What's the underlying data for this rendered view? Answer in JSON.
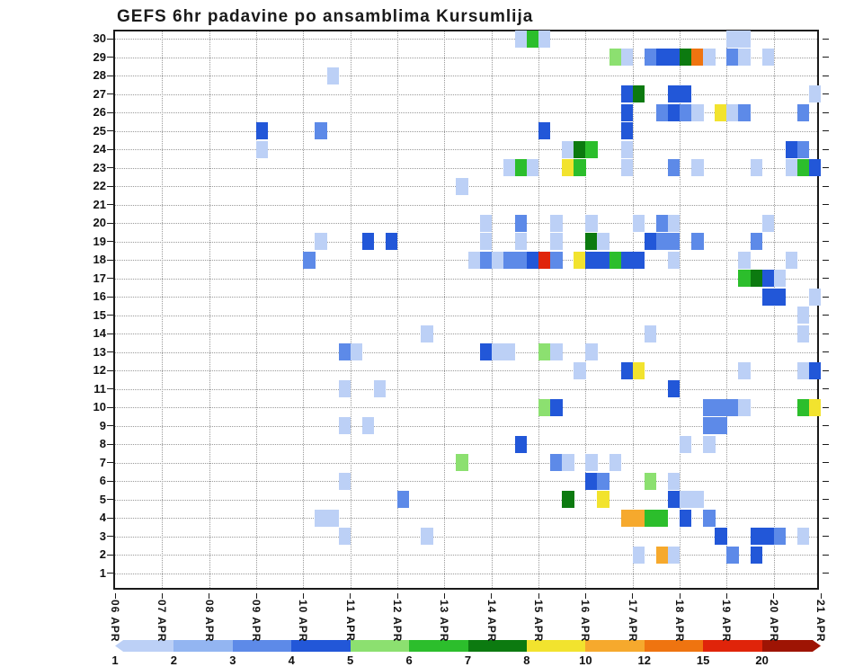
{
  "chart_data": {
    "type": "heatmap",
    "title": "GEFS 6hr padavine po ansamblima Kursumlija",
    "x_axis": {
      "tick_labels": [
        "06 APR",
        "07 APR",
        "08 APR",
        "09 APR",
        "10 APR",
        "11 APR",
        "12 APR",
        "13 APR",
        "14 APR",
        "15 APR",
        "16 APR",
        "17 APR",
        "18 APR",
        "19 APR",
        "20 APR",
        "21 APR"
      ],
      "slots_per_day": 4,
      "total_slots": 60
    },
    "y_axis": {
      "tick_labels": [
        "1",
        "2",
        "3",
        "4",
        "5",
        "6",
        "7",
        "8",
        "9",
        "10",
        "11",
        "12",
        "13",
        "14",
        "15",
        "16",
        "17",
        "18",
        "19",
        "20",
        "21",
        "22",
        "23",
        "24",
        "25",
        "26",
        "27",
        "28",
        "29",
        "30"
      ],
      "range": [
        1,
        30
      ]
    },
    "grid": "dotted",
    "legend": {
      "values": [
        "1",
        "2",
        "3",
        "4",
        "5",
        "6",
        "7",
        "8",
        "10",
        "12",
        "15",
        "20"
      ],
      "colors": [
        "#bcd0f6",
        "#93b5f1",
        "#5d8ae8",
        "#2257d8",
        "#8ce070",
        "#2cbe2c",
        "#0c7a10",
        "#f2e32e",
        "#f6a92d",
        "#ef7410",
        "#e0240a",
        "#9e1404"
      ]
    },
    "cells": [
      [
        30,
        34,
        0
      ],
      [
        30,
        35,
        5
      ],
      [
        30,
        36,
        0
      ],
      [
        30,
        52,
        0
      ],
      [
        30,
        53,
        0
      ],
      [
        29,
        42,
        4
      ],
      [
        29,
        43,
        0
      ],
      [
        29,
        45,
        2
      ],
      [
        29,
        46,
        3
      ],
      [
        29,
        47,
        3
      ],
      [
        29,
        48,
        6
      ],
      [
        29,
        49,
        9
      ],
      [
        29,
        50,
        0
      ],
      [
        29,
        52,
        2
      ],
      [
        29,
        53,
        0
      ],
      [
        29,
        55,
        0
      ],
      [
        28,
        18,
        0
      ],
      [
        27,
        43,
        3
      ],
      [
        27,
        44,
        6
      ],
      [
        27,
        47,
        3
      ],
      [
        27,
        48,
        3
      ],
      [
        27,
        59,
        0
      ],
      [
        26,
        43,
        3
      ],
      [
        26,
        46,
        2
      ],
      [
        26,
        47,
        3
      ],
      [
        26,
        48,
        2
      ],
      [
        26,
        49,
        0
      ],
      [
        26,
        51,
        7
      ],
      [
        26,
        52,
        0
      ],
      [
        26,
        53,
        2
      ],
      [
        26,
        58,
        2
      ],
      [
        25,
        12,
        3
      ],
      [
        25,
        17,
        2
      ],
      [
        25,
        36,
        3
      ],
      [
        25,
        43,
        3
      ],
      [
        24,
        12,
        0
      ],
      [
        24,
        38,
        0
      ],
      [
        24,
        39,
        6
      ],
      [
        24,
        40,
        5
      ],
      [
        24,
        43,
        0
      ],
      [
        24,
        57,
        3
      ],
      [
        24,
        58,
        2
      ],
      [
        23,
        33,
        0
      ],
      [
        23,
        34,
        5
      ],
      [
        23,
        35,
        0
      ],
      [
        23,
        38,
        7
      ],
      [
        23,
        39,
        5
      ],
      [
        23,
        43,
        0
      ],
      [
        23,
        47,
        2
      ],
      [
        23,
        49,
        0
      ],
      [
        23,
        54,
        0
      ],
      [
        23,
        57,
        0
      ],
      [
        23,
        58,
        5
      ],
      [
        23,
        59,
        3
      ],
      [
        22,
        29,
        0
      ],
      [
        20,
        31,
        0
      ],
      [
        20,
        34,
        2
      ],
      [
        20,
        37,
        0
      ],
      [
        20,
        40,
        0
      ],
      [
        20,
        44,
        0
      ],
      [
        20,
        46,
        2
      ],
      [
        20,
        47,
        0
      ],
      [
        20,
        55,
        0
      ],
      [
        19,
        17,
        0
      ],
      [
        19,
        21,
        3
      ],
      [
        19,
        23,
        3
      ],
      [
        19,
        31,
        0
      ],
      [
        19,
        34,
        0
      ],
      [
        19,
        37,
        0
      ],
      [
        19,
        40,
        6
      ],
      [
        19,
        41,
        0
      ],
      [
        19,
        45,
        3
      ],
      [
        19,
        46,
        2
      ],
      [
        19,
        47,
        2
      ],
      [
        19,
        49,
        2
      ],
      [
        19,
        54,
        2
      ],
      [
        18,
        16,
        2
      ],
      [
        18,
        30,
        0
      ],
      [
        18,
        31,
        2
      ],
      [
        18,
        32,
        0
      ],
      [
        18,
        33,
        2
      ],
      [
        18,
        34,
        2
      ],
      [
        18,
        35,
        3
      ],
      [
        18,
        36,
        10
      ],
      [
        18,
        37,
        2
      ],
      [
        18,
        39,
        7
      ],
      [
        18,
        40,
        3
      ],
      [
        18,
        41,
        3
      ],
      [
        18,
        42,
        5
      ],
      [
        18,
        43,
        3
      ],
      [
        18,
        44,
        3
      ],
      [
        18,
        47,
        0
      ],
      [
        18,
        53,
        0
      ],
      [
        18,
        57,
        0
      ],
      [
        17,
        53,
        5
      ],
      [
        17,
        54,
        6
      ],
      [
        17,
        55,
        3
      ],
      [
        17,
        56,
        0
      ],
      [
        16,
        55,
        3
      ],
      [
        16,
        56,
        3
      ],
      [
        16,
        59,
        0
      ],
      [
        15,
        58,
        0
      ],
      [
        14,
        26,
        0
      ],
      [
        14,
        45,
        0
      ],
      [
        14,
        58,
        0
      ],
      [
        13,
        19,
        2
      ],
      [
        13,
        20,
        0
      ],
      [
        13,
        31,
        3
      ],
      [
        13,
        32,
        0
      ],
      [
        13,
        33,
        0
      ],
      [
        13,
        36,
        4
      ],
      [
        13,
        37,
        0
      ],
      [
        13,
        40,
        0
      ],
      [
        12,
        39,
        0
      ],
      [
        12,
        43,
        3
      ],
      [
        12,
        44,
        7
      ],
      [
        12,
        53,
        0
      ],
      [
        12,
        58,
        0
      ],
      [
        12,
        59,
        3
      ],
      [
        11,
        19,
        0
      ],
      [
        11,
        22,
        0
      ],
      [
        11,
        47,
        3
      ],
      [
        10,
        36,
        4
      ],
      [
        10,
        37,
        3
      ],
      [
        10,
        50,
        2
      ],
      [
        10,
        51,
        2
      ],
      [
        10,
        52,
        2
      ],
      [
        10,
        53,
        0
      ],
      [
        10,
        58,
        5
      ],
      [
        10,
        59,
        7
      ],
      [
        9,
        19,
        0
      ],
      [
        9,
        21,
        0
      ],
      [
        9,
        50,
        2
      ],
      [
        9,
        51,
        2
      ],
      [
        8,
        34,
        3
      ],
      [
        8,
        48,
        0
      ],
      [
        8,
        50,
        0
      ],
      [
        7,
        29,
        4
      ],
      [
        7,
        37,
        2
      ],
      [
        7,
        38,
        0
      ],
      [
        7,
        40,
        0
      ],
      [
        7,
        42,
        0
      ],
      [
        6,
        19,
        0
      ],
      [
        6,
        40,
        3
      ],
      [
        6,
        41,
        2
      ],
      [
        6,
        45,
        4
      ],
      [
        6,
        47,
        0
      ],
      [
        5,
        24,
        2
      ],
      [
        5,
        38,
        6
      ],
      [
        5,
        41,
        7
      ],
      [
        5,
        47,
        3
      ],
      [
        5,
        48,
        0
      ],
      [
        5,
        49,
        0
      ],
      [
        4,
        17,
        0
      ],
      [
        4,
        18,
        0
      ],
      [
        4,
        43,
        8
      ],
      [
        4,
        44,
        8
      ],
      [
        4,
        45,
        5
      ],
      [
        4,
        46,
        5
      ],
      [
        4,
        48,
        3
      ],
      [
        4,
        50,
        2
      ],
      [
        3,
        19,
        0
      ],
      [
        3,
        26,
        0
      ],
      [
        3,
        51,
        3
      ],
      [
        3,
        54,
        3
      ],
      [
        3,
        55,
        3
      ],
      [
        3,
        56,
        2
      ],
      [
        3,
        58,
        0
      ],
      [
        2,
        44,
        0
      ],
      [
        2,
        46,
        8
      ],
      [
        2,
        47,
        0
      ],
      [
        2,
        52,
        2
      ],
      [
        2,
        54,
        3
      ]
    ]
  }
}
